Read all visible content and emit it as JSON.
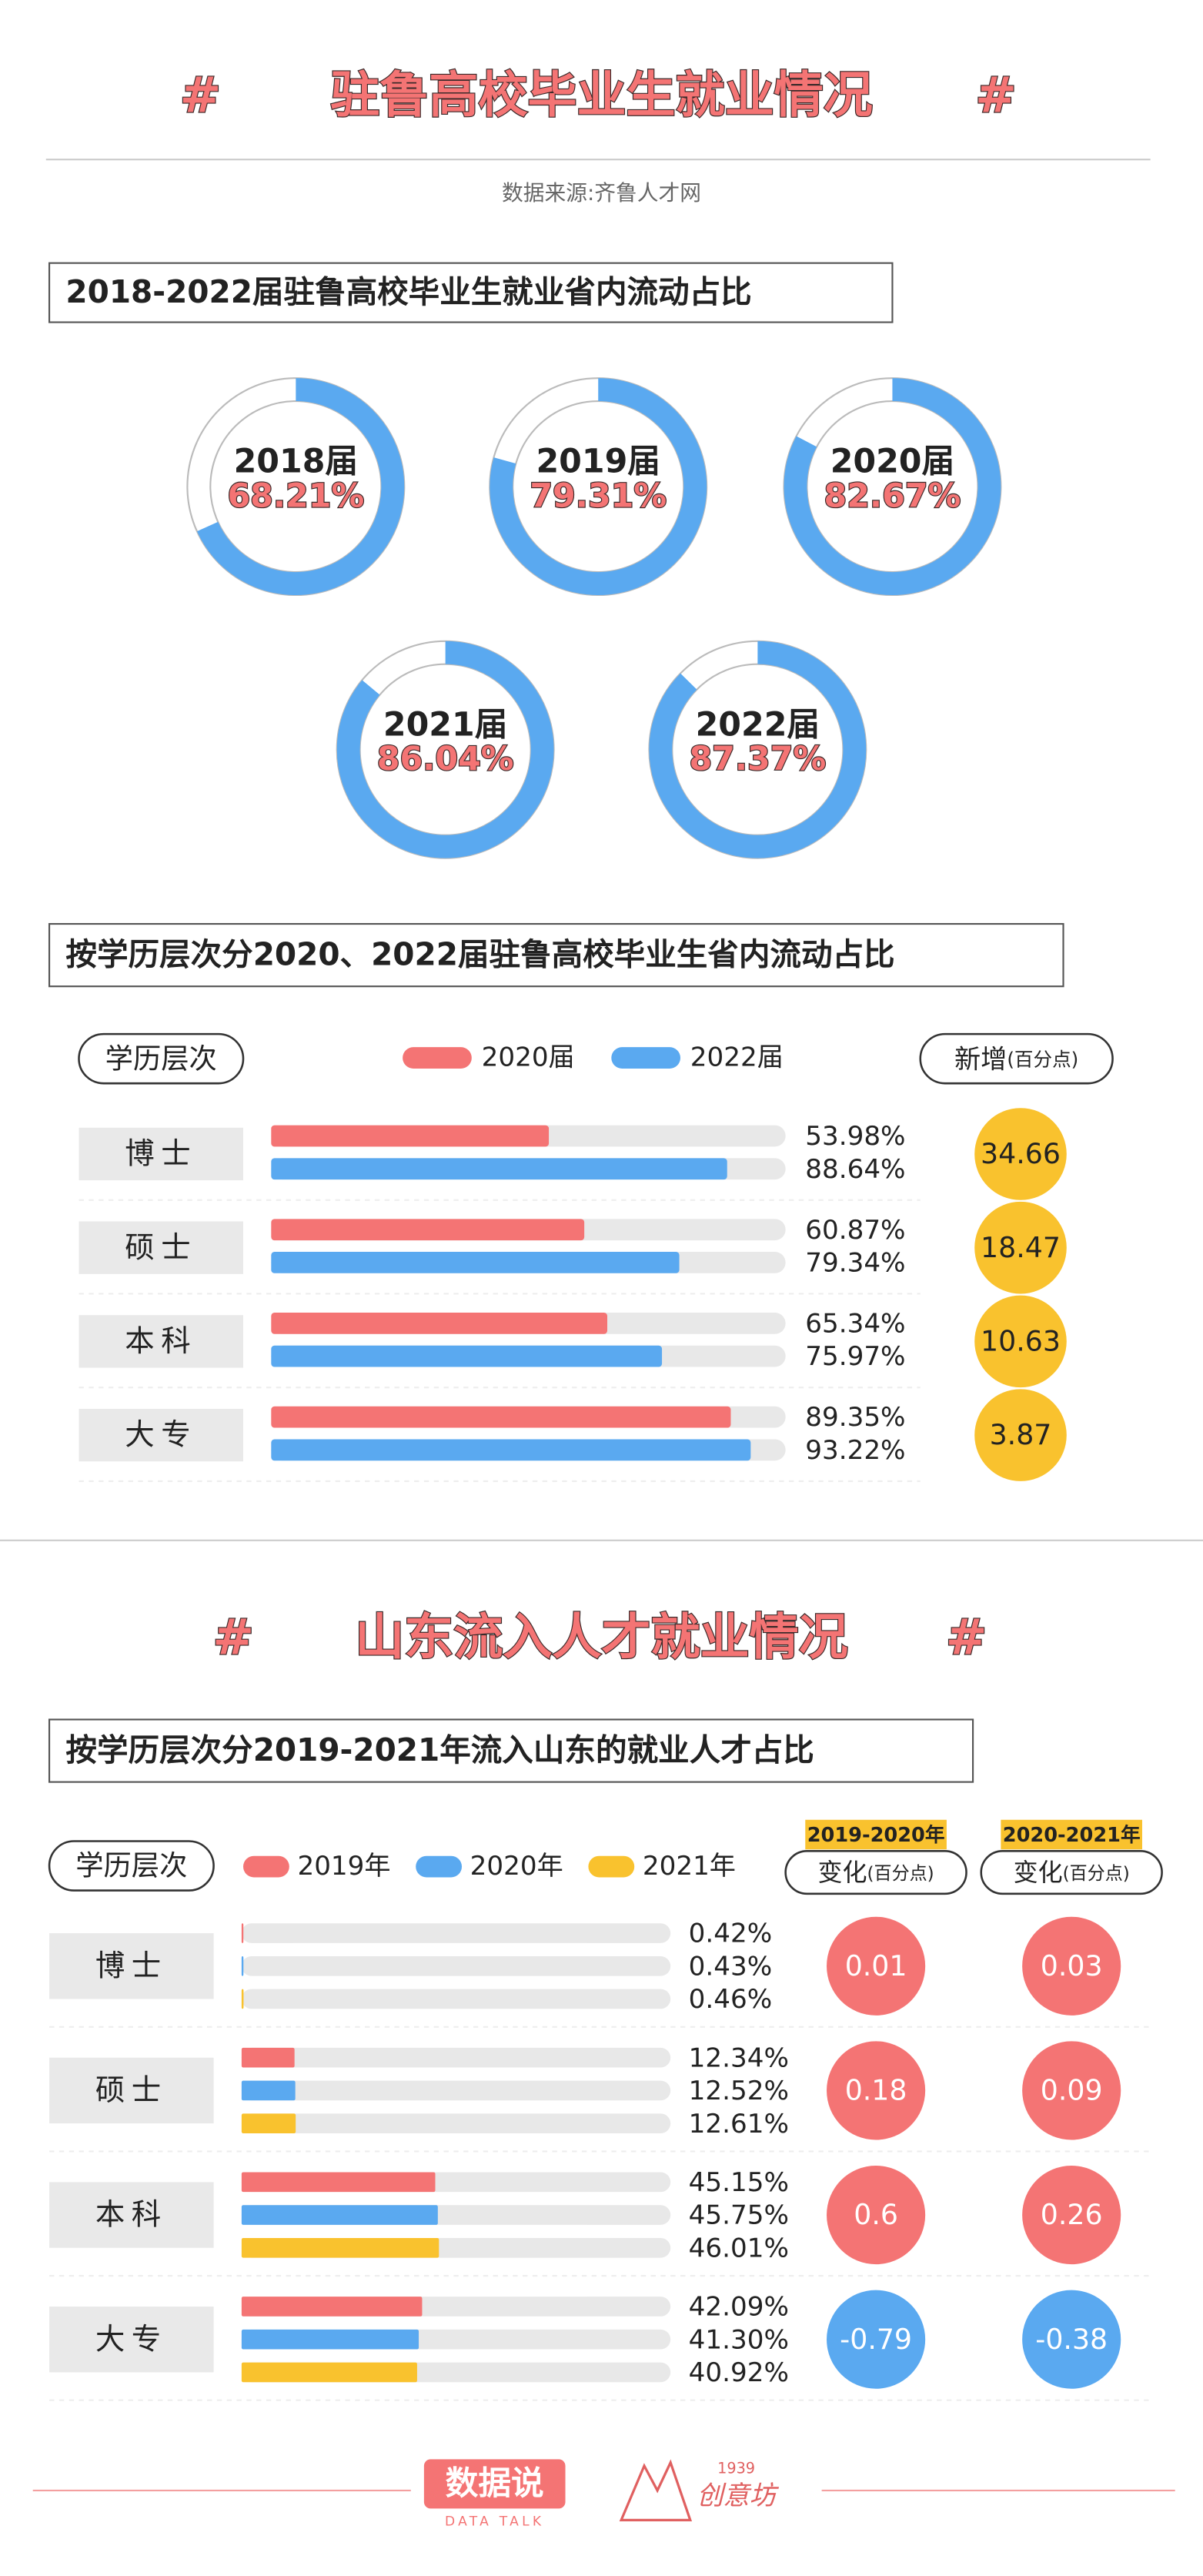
{
  "header": {
    "hash": "#",
    "title": "驻鲁高校毕业生就业情况",
    "source": "数据来源:齐鲁人才网"
  },
  "donut_chart": {
    "type": "donut",
    "title": "2018-2022届驻鲁高校毕业生就业省内流动占比",
    "categories": [
      "2018届",
      "2019届",
      "2020届",
      "2021届",
      "2022届"
    ],
    "values": [
      68.21,
      79.31,
      82.67,
      86.04,
      87.37
    ],
    "value_labels": [
      "68.21%",
      "79.31%",
      "82.67%",
      "86.04%",
      "87.37%"
    ],
    "range": [
      0,
      100
    ],
    "color": "#5aa9f0"
  },
  "bar_chart_1": {
    "type": "bar",
    "title": "按学历层次分2020、2022届驻鲁高校毕业生省内流动占比",
    "category_header": "学历层次",
    "categories": [
      "博士",
      "硕士",
      "本科",
      "大专"
    ],
    "xlim": [
      0,
      100
    ],
    "series": [
      {
        "name": "2020届",
        "color": "#f47474",
        "values": [
          53.98,
          60.87,
          65.34,
          89.35
        ],
        "value_labels": [
          "53.98%",
          "60.87%",
          "65.34%",
          "89.35%"
        ]
      },
      {
        "name": "2022届",
        "color": "#5aa9f0",
        "values": [
          88.64,
          79.34,
          75.97,
          93.22
        ],
        "value_labels": [
          "88.64%",
          "79.34%",
          "75.97%",
          "93.22%"
        ]
      }
    ],
    "change": {
      "header": "新增",
      "unit": "(百分点)",
      "color": "#f9c22e",
      "values": [
        34.66,
        18.47,
        10.63,
        3.87
      ]
    }
  },
  "section2": {
    "title": "山东流入人才就业情况"
  },
  "bar_chart_2": {
    "type": "bar",
    "title": "按学历层次分2019-2021年流入山东的就业人才占比",
    "category_header": "学历层次",
    "categories": [
      "博士",
      "硕士",
      "本科",
      "大专"
    ],
    "xlim": [
      0,
      100
    ],
    "series": [
      {
        "name": "2019年",
        "color": "#f47474",
        "values": [
          0.42,
          12.34,
          45.15,
          42.09
        ],
        "value_labels": [
          "0.42%",
          "12.34%",
          "45.15%",
          "42.09%"
        ]
      },
      {
        "name": "2020年",
        "color": "#5aa9f0",
        "values": [
          0.43,
          12.52,
          45.75,
          41.3
        ],
        "value_labels": [
          "0.43%",
          "12.52%",
          "45.75%",
          "41.30%"
        ]
      },
      {
        "name": "2021年",
        "color": "#f9c22e",
        "values": [
          0.46,
          12.61,
          46.01,
          40.92
        ],
        "value_labels": [
          "0.46%",
          "12.61%",
          "46.01%",
          "40.92%"
        ]
      }
    ],
    "change_header": "变化",
    "change_unit": "(百分点)",
    "change_colors": {
      "positive": "#f47474",
      "negative": "#5aa9f0"
    },
    "changes": [
      {
        "label": "2019-2020年",
        "values": [
          0.01,
          0.18,
          0.6,
          -0.79
        ]
      },
      {
        "label": "2020-2021年",
        "values": [
          0.03,
          0.09,
          0.26,
          -0.38
        ]
      }
    ]
  },
  "footer": {
    "brand": "数据说",
    "brand_sub": "DATA TALK",
    "partner_year": "1939",
    "partner": "创意坊"
  }
}
